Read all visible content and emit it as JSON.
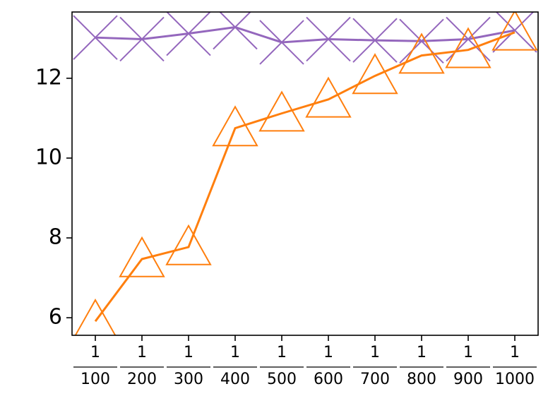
{
  "chart_data": {
    "type": "line",
    "categories": [
      {
        "numerator": "1",
        "denominator": "100"
      },
      {
        "numerator": "1",
        "denominator": "200"
      },
      {
        "numerator": "1",
        "denominator": "300"
      },
      {
        "numerator": "1",
        "denominator": "400"
      },
      {
        "numerator": "1",
        "denominator": "500"
      },
      {
        "numerator": "1",
        "denominator": "600"
      },
      {
        "numerator": "1",
        "denominator": "700"
      },
      {
        "numerator": "1",
        "denominator": "800"
      },
      {
        "numerator": "1",
        "denominator": "900"
      },
      {
        "numerator": "1",
        "denominator": "1000"
      }
    ],
    "series": [
      {
        "color": "#9467bd",
        "marker": "x",
        "values": [
          13.02,
          12.98,
          13.12,
          13.28,
          12.9,
          12.98,
          12.95,
          12.93,
          12.98,
          13.2
        ]
      },
      {
        "color": "#ff7f0e",
        "marker": "triangle",
        "values": [
          5.91,
          7.47,
          7.77,
          10.75,
          11.12,
          11.47,
          12.06,
          12.57,
          12.71,
          13.15
        ]
      }
    ],
    "ylim": [
      5.56,
      13.66
    ],
    "yticks": [
      6,
      8,
      10,
      12
    ]
  }
}
